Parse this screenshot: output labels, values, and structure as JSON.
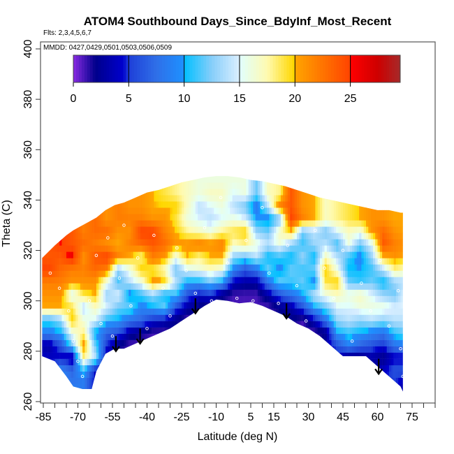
{
  "chart_data": {
    "type": "heatmap",
    "title": "ATOM4 Southbound Days_Since_BdyInf_Most_Recent",
    "subtitle": "Flts: 2,3,4,5,6,7",
    "annotation": "MMDD: 0427,0429,0501,0503,0506,0509",
    "xlabel": "Latitude (deg N)",
    "ylabel": "Theta (C)",
    "xlim": [
      -87,
      88
    ],
    "ylim": [
      260,
      402
    ],
    "x_ticks": [
      -85,
      -80,
      -75,
      -70,
      -65,
      -60,
      -55,
      -50,
      -45,
      -40,
      -35,
      -30,
      -25,
      -20,
      -15,
      -10,
      -5,
      0,
      5,
      10,
      15,
      20,
      25,
      30,
      35,
      40,
      45,
      50,
      55,
      60,
      65,
      70,
      75,
      80,
      85
    ],
    "x_tick_labels": [
      "-85",
      "-70",
      "-55",
      "-40",
      "-25",
      "-10",
      "5",
      "15",
      "30",
      "45",
      "60",
      "75"
    ],
    "x_tick_label_values": [
      -85,
      -70,
      -55,
      -40,
      -25,
      -10,
      5,
      15,
      30,
      45,
      60,
      75
    ],
    "y_ticks": [
      260,
      280,
      300,
      320,
      340,
      360,
      380,
      400
    ],
    "y_tick_labels": [
      "260",
      "280",
      "300",
      "320",
      "340",
      "360",
      "380",
      "400"
    ],
    "colorbar": {
      "range": [
        0,
        29.5
      ],
      "ticks": [
        0,
        5,
        10,
        15,
        20,
        25
      ],
      "tick_labels": [
        "0",
        "5",
        "10",
        "15",
        "20",
        "25"
      ],
      "stops": [
        [
          0,
          "#8a2be2"
        ],
        [
          2,
          "#00008b"
        ],
        [
          4.5,
          "#0000cd"
        ],
        [
          5,
          "#1e3fd8"
        ],
        [
          7.5,
          "#2f6fe8"
        ],
        [
          9.9,
          "#1e90ff"
        ],
        [
          10,
          "#00bfff"
        ],
        [
          12.5,
          "#87cefa"
        ],
        [
          14.9,
          "#d8eeff"
        ],
        [
          15,
          "#e0ffff"
        ],
        [
          17.5,
          "#fffab0"
        ],
        [
          19.9,
          "#ffd700"
        ],
        [
          20,
          "#ffa500"
        ],
        [
          24.9,
          "#ff4500"
        ],
        [
          25,
          "#ff0000"
        ],
        [
          27.5,
          "#cd0000"
        ],
        [
          29.5,
          "#a52a2a"
        ]
      ]
    },
    "grid": {
      "lat_centers": [
        -82.5,
        -77.5,
        -72.5,
        -67.5,
        -62.5,
        -57.5,
        -52.5,
        -47.5,
        -42.5,
        -37.5,
        -32.5,
        -27.5,
        -22.5,
        -17.5,
        -12.5,
        -7.5,
        -2.5,
        2.5,
        7.5,
        12.5,
        17.5,
        22.5,
        27.5,
        32.5,
        37.5,
        42.5,
        47.5,
        52.5,
        57.5,
        62.5,
        67.5,
        72.5
      ],
      "theta_centers": [
        262.5,
        267.5,
        272.5,
        277.5,
        282.5,
        287.5,
        292.5,
        297.5,
        302.5,
        307.5,
        312.5,
        317.5,
        322.5,
        327.5,
        332.5,
        337.5,
        342.5,
        347.5
      ],
      "values": [
        [
          null,
          null,
          null,
          4,
          3,
          9,
          11,
          20,
          21,
          22,
          25,
          24,
          null,
          null,
          null,
          null,
          null,
          null
        ],
        [
          null,
          9,
          9,
          4,
          6,
          10,
          13,
          20,
          21,
          22,
          23,
          24,
          25,
          null,
          null,
          null,
          null,
          null
        ],
        [
          9,
          8,
          7,
          3,
          12,
          16,
          20,
          19,
          15,
          21,
          22,
          26,
          24,
          null,
          null,
          null,
          null,
          null
        ],
        [
          9,
          8,
          11,
          18,
          21,
          18,
          16,
          14,
          19,
          21,
          22,
          21,
          23,
          22,
          null,
          null,
          null,
          null
        ],
        [
          null,
          null,
          4,
          14,
          12,
          10,
          15,
          17,
          20,
          21,
          23,
          24,
          22,
          23,
          null,
          null,
          null,
          null
        ],
        [
          null,
          null,
          null,
          3,
          5,
          7,
          11,
          15,
          13,
          16,
          22,
          25,
          21,
          23,
          21,
          null,
          null,
          null
        ],
        [
          null,
          null,
          null,
          null,
          2,
          6,
          10,
          12,
          15,
          11,
          13,
          22,
          20,
          21,
          22,
          null,
          null,
          null
        ],
        [
          null,
          null,
          null,
          null,
          1,
          3,
          8,
          12,
          9,
          14,
          16,
          20,
          22,
          21,
          22,
          21,
          null,
          null
        ],
        [
          null,
          null,
          null,
          null,
          1,
          2,
          7,
          9,
          11,
          16,
          20,
          18,
          23,
          25,
          22,
          21,
          null,
          null
        ],
        [
          null,
          null,
          null,
          null,
          null,
          1,
          5,
          10,
          13,
          21,
          19,
          22,
          24,
          25,
          21,
          20,
          null,
          null
        ],
        [
          null,
          null,
          null,
          null,
          null,
          1,
          4,
          12,
          10,
          20,
          17,
          21,
          23,
          22,
          21,
          20,
          19,
          null
        ],
        [
          null,
          null,
          null,
          null,
          null,
          null,
          2,
          6,
          11,
          14,
          12,
          16,
          21,
          20,
          19,
          20,
          18,
          null
        ],
        [
          null,
          null,
          null,
          null,
          null,
          null,
          1,
          3,
          6,
          10,
          15,
          20,
          21,
          18,
          16,
          17,
          17,
          null
        ],
        [
          null,
          null,
          null,
          null,
          null,
          null,
          null,
          2,
          4,
          10,
          16,
          18,
          22,
          17,
          15,
          14,
          16,
          16
        ],
        [
          null,
          null,
          null,
          null,
          null,
          null,
          null,
          1,
          5,
          12,
          17,
          20,
          21,
          16,
          14,
          15,
          17,
          16
        ],
        [
          null,
          null,
          null,
          null,
          null,
          null,
          null,
          null,
          2,
          10,
          16,
          20,
          22,
          18,
          15,
          16,
          17,
          16
        ],
        [
          null,
          null,
          null,
          null,
          null,
          null,
          null,
          null,
          1,
          4,
          9,
          13,
          17,
          19,
          16,
          14,
          15,
          16
        ],
        [
          null,
          null,
          null,
          null,
          null,
          null,
          null,
          null,
          1,
          3,
          6,
          12,
          18,
          20,
          15,
          12,
          16,
          16
        ],
        [
          null,
          null,
          null,
          null,
          null,
          null,
          null,
          null,
          1,
          3,
          8,
          14,
          16,
          13,
          10,
          8,
          12,
          null
        ],
        [
          null,
          null,
          null,
          null,
          null,
          null,
          null,
          1,
          3,
          8,
          12,
          10,
          14,
          12,
          9,
          14,
          17,
          null
        ],
        [
          null,
          null,
          null,
          null,
          null,
          null,
          null,
          2,
          6,
          12,
          9,
          11,
          16,
          17,
          12,
          22,
          18,
          null
        ],
        [
          null,
          null,
          null,
          null,
          null,
          null,
          2,
          3,
          8,
          11,
          12,
          10,
          13,
          20,
          25,
          24,
          null,
          null
        ],
        [
          null,
          null,
          null,
          null,
          null,
          null,
          1,
          6,
          10,
          12,
          11,
          13,
          11,
          12,
          22,
          21,
          null,
          null
        ],
        [
          null,
          null,
          null,
          null,
          null,
          1,
          4,
          10,
          14,
          9,
          12,
          10,
          13,
          14,
          20,
          null,
          null,
          null
        ],
        [
          null,
          null,
          null,
          null,
          3,
          2,
          8,
          12,
          16,
          19,
          20,
          17,
          14,
          12,
          17,
          null,
          null,
          null
        ],
        [
          null,
          null,
          null,
          4,
          6,
          10,
          13,
          15,
          17,
          20,
          16,
          14,
          11,
          15,
          18,
          null,
          null,
          null
        ],
        [
          null,
          null,
          null,
          2,
          9,
          11,
          14,
          15,
          16,
          12,
          10,
          11,
          16,
          17,
          19,
          null,
          null,
          null
        ],
        [
          null,
          null,
          null,
          2,
          7,
          10,
          13,
          16,
          17,
          11,
          10,
          9,
          12,
          16,
          20,
          null,
          null,
          null
        ],
        [
          null,
          null,
          null,
          3,
          6,
          9,
          14,
          16,
          15,
          12,
          11,
          13,
          15,
          21,
          21,
          null,
          null,
          null
        ],
        [
          null,
          null,
          4,
          2,
          5,
          8,
          13,
          16,
          13,
          10,
          14,
          20,
          24,
          23,
          21,
          null,
          null,
          null
        ],
        [
          null,
          5,
          6,
          4,
          8,
          11,
          14,
          15,
          12,
          13,
          18,
          21,
          22,
          21,
          20,
          null,
          null,
          null
        ],
        [
          2,
          3,
          6,
          4,
          9,
          12,
          14,
          15,
          16,
          14,
          17,
          20,
          21,
          20,
          null,
          null,
          null,
          null
        ]
      ]
    },
    "envelope": {
      "lat": [
        -85.5,
        -80,
        -75,
        -72,
        -68,
        -64,
        -62,
        -58,
        -54,
        -50,
        -45,
        -40,
        -35,
        -30,
        -25,
        -20,
        -15,
        -10,
        -5,
        0,
        5,
        10,
        15,
        20,
        25,
        30,
        35,
        40,
        45,
        50,
        55,
        60,
        65,
        70,
        71
      ],
      "theta_bottom": [
        278,
        276,
        270,
        266,
        265,
        265,
        272,
        279,
        281,
        281,
        283,
        285,
        287,
        289,
        292,
        295,
        298,
        300.5,
        300,
        299,
        299.5,
        298,
        296,
        294,
        291,
        289,
        286,
        282,
        278,
        278,
        278,
        274,
        270,
        266,
        264
      ],
      "theta_top": [
        317,
        322,
        326,
        328,
        330,
        332,
        333,
        336,
        338,
        339,
        341,
        343,
        344,
        345.5,
        347,
        348,
        349,
        349.5,
        349.5,
        349,
        348,
        347.5,
        346.5,
        345.5,
        344,
        342.5,
        341,
        340,
        339,
        338,
        337,
        336,
        336,
        335,
        335
      ]
    },
    "arrows": [
      {
        "lat": -53.5,
        "theta_from": 286,
        "theta_to": 280
      },
      {
        "lat": -43,
        "theta_from": 289,
        "theta_to": 283
      },
      {
        "lat": -19,
        "theta_from": 301,
        "theta_to": 295
      },
      {
        "lat": 20.5,
        "theta_from": 299,
        "theta_to": 293
      },
      {
        "lat": 60.5,
        "theta_from": 277,
        "theta_to": 271
      }
    ],
    "sample_points": [
      [
        -82,
        311
      ],
      [
        -78,
        305
      ],
      [
        -74,
        296
      ],
      [
        -72,
        284
      ],
      [
        -70,
        276
      ],
      [
        -68,
        270
      ],
      [
        -65,
        300
      ],
      [
        -62,
        318
      ],
      [
        -60,
        291
      ],
      [
        -57,
        325
      ],
      [
        -55,
        286
      ],
      [
        -52,
        309
      ],
      [
        -50,
        330
      ],
      [
        -47,
        298
      ],
      [
        -44,
        317
      ],
      [
        -40,
        289
      ],
      [
        -37,
        326
      ],
      [
        -33,
        305
      ],
      [
        -30,
        294
      ],
      [
        -27,
        321
      ],
      [
        -23,
        312
      ],
      [
        -19,
        303
      ],
      [
        -15,
        329
      ],
      [
        -12,
        300
      ],
      [
        -8,
        341
      ],
      [
        -5,
        315
      ],
      [
        -1,
        301
      ],
      [
        3,
        324
      ],
      [
        6,
        300
      ],
      [
        10,
        337
      ],
      [
        13,
        311
      ],
      [
        17,
        299
      ],
      [
        21,
        322
      ],
      [
        25,
        306
      ],
      [
        29,
        292
      ],
      [
        33,
        328
      ],
      [
        37,
        313
      ],
      [
        41,
        301
      ],
      [
        45,
        320
      ],
      [
        49,
        284
      ],
      [
        53,
        307
      ],
      [
        57,
        296
      ],
      [
        61,
        316
      ],
      [
        65,
        290
      ],
      [
        69,
        304
      ],
      [
        70,
        281
      ],
      [
        71,
        270
      ]
    ]
  }
}
